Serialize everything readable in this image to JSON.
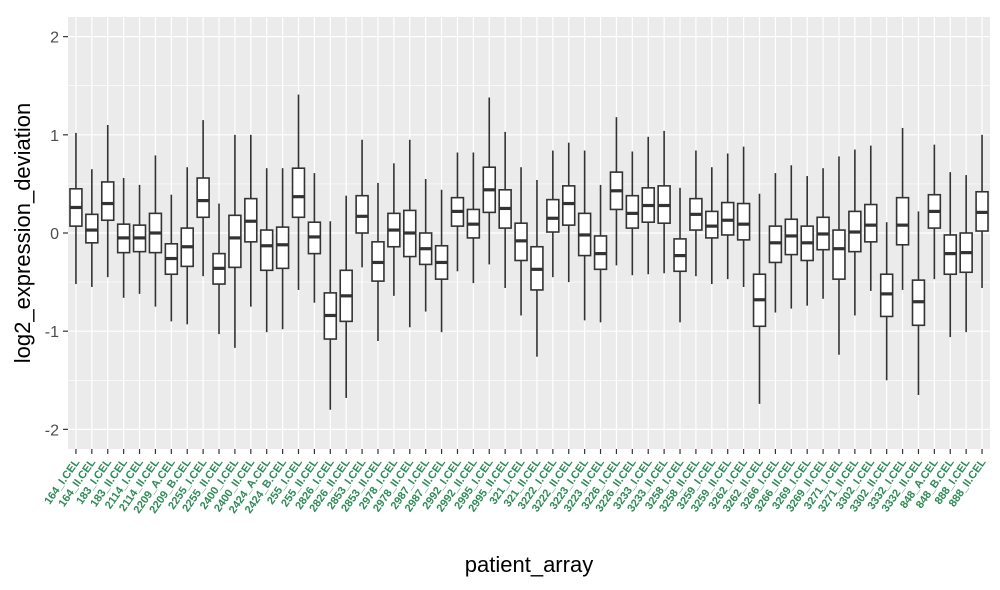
{
  "chart_data": {
    "type": "boxplot",
    "xlabel": "patient_array",
    "ylabel": "log2_expression_deviation",
    "ylim": [
      -2.2,
      2.2
    ],
    "y_ticks": [
      -2,
      -1,
      0,
      1,
      2
    ],
    "y_tick_labels": [
      "-2",
      "-1",
      "0",
      "1",
      "2"
    ],
    "grid": true,
    "legend": "none",
    "colors": {
      "panel": "#EBEBEB",
      "grid": "#FFFFFF",
      "box_fill": "#FFFFFF",
      "box_line": "#333333",
      "tick_label_x": "#2E8B57",
      "tick_label_y": "#4D4D4D"
    },
    "categories": [
      "164_I.CEL",
      "164_II.CEL",
      "183_I.CEL",
      "183_II.CEL",
      "2114_I.CEL",
      "2114_II.CEL",
      "2209_A.CEL",
      "2209_B.CEL",
      "2255_I.CEL",
      "2255_II.CEL",
      "2400_I.CEL",
      "2400_II.CEL",
      "2424_A.CEL",
      "2424_B.CEL",
      "255_I.CEL",
      "255_II.CEL",
      "2826_I.CEL",
      "2826_II.CEL",
      "2853_I.CEL",
      "2853_II.CEL",
      "2978_I.CEL",
      "2978_II.CEL",
      "2987_I.CEL",
      "2987_II.CEL",
      "2992_I.CEL",
      "2992_II.CEL",
      "2995_I.CEL",
      "2995_II.CEL",
      "321_I.CEL",
      "321_II.CEL",
      "3222_I.CEL",
      "3222_II.CEL",
      "3223_I.CEL",
      "3223_II.CEL",
      "3226_I.CEL",
      "3226_II.CEL",
      "3233_I.CEL",
      "3233_II.CEL",
      "3258_I.CEL",
      "3258_II.CEL",
      "3259_I.CEL",
      "3259_II.CEL",
      "3262_I.CEL",
      "3262_II.CEL",
      "3266_I.CEL",
      "3266_II.CEL",
      "3269_I.CEL",
      "3269_II.CEL",
      "3271_I.CEL",
      "3271_II.CEL",
      "3302_I.CEL",
      "3302_II.CEL",
      "3332_I.CEL",
      "3332_II.CEL",
      "848_A.CEL",
      "848_B.CEL",
      "888_I.CEL",
      "888_II.CEL"
    ],
    "boxes": [
      {
        "min": -0.52,
        "q1": 0.07,
        "median": 0.26,
        "q3": 0.45,
        "max": 1.02
      },
      {
        "min": -0.55,
        "q1": -0.1,
        "median": 0.03,
        "q3": 0.19,
        "max": 0.65
      },
      {
        "min": -0.45,
        "q1": 0.13,
        "median": 0.3,
        "q3": 0.52,
        "max": 1.1
      },
      {
        "min": -0.66,
        "q1": -0.2,
        "median": -0.05,
        "q3": 0.09,
        "max": 0.56
      },
      {
        "min": -0.62,
        "q1": -0.19,
        "median": -0.05,
        "q3": 0.08,
        "max": 0.49
      },
      {
        "min": -0.75,
        "q1": -0.2,
        "median": 0.0,
        "q3": 0.2,
        "max": 0.79
      },
      {
        "min": -0.9,
        "q1": -0.42,
        "median": -0.26,
        "q3": -0.11,
        "max": 0.39
      },
      {
        "min": -0.93,
        "q1": -0.34,
        "median": -0.14,
        "q3": 0.05,
        "max": 0.67
      },
      {
        "min": -0.44,
        "q1": 0.16,
        "median": 0.33,
        "q3": 0.56,
        "max": 1.15
      },
      {
        "min": -1.03,
        "q1": -0.52,
        "median": -0.36,
        "q3": -0.21,
        "max": 0.3
      },
      {
        "min": -1.17,
        "q1": -0.35,
        "median": -0.05,
        "q3": 0.18,
        "max": 1.0
      },
      {
        "min": -0.75,
        "q1": -0.09,
        "median": 0.12,
        "q3": 0.35,
        "max": 1.0
      },
      {
        "min": -1.01,
        "q1": -0.38,
        "median": -0.13,
        "q3": 0.03,
        "max": 0.66
      },
      {
        "min": -0.98,
        "q1": -0.36,
        "median": -0.12,
        "q3": 0.06,
        "max": 0.66
      },
      {
        "min": -0.58,
        "q1": 0.16,
        "median": 0.37,
        "q3": 0.66,
        "max": 1.41
      },
      {
        "min": -0.71,
        "q1": -0.21,
        "median": -0.04,
        "q3": 0.11,
        "max": 0.61
      },
      {
        "min": -1.8,
        "q1": -1.08,
        "median": -0.84,
        "q3": -0.61,
        "max": 0.12
      },
      {
        "min": -1.68,
        "q1": -0.9,
        "median": -0.64,
        "q3": -0.38,
        "max": 0.38
      },
      {
        "min": -0.35,
        "q1": 0.0,
        "median": 0.17,
        "q3": 0.38,
        "max": 0.95
      },
      {
        "min": -1.1,
        "q1": -0.49,
        "median": -0.3,
        "q3": -0.09,
        "max": 0.51
      },
      {
        "min": -0.64,
        "q1": -0.14,
        "median": 0.03,
        "q3": 0.2,
        "max": 0.71
      },
      {
        "min": -0.96,
        "q1": -0.24,
        "median": 0.0,
        "q3": 0.23,
        "max": 0.95
      },
      {
        "min": -0.8,
        "q1": -0.32,
        "median": -0.16,
        "q3": 0.0,
        "max": 0.55
      },
      {
        "min": -1.01,
        "q1": -0.47,
        "median": -0.3,
        "q3": -0.13,
        "max": 0.44
      },
      {
        "min": -0.39,
        "q1": 0.07,
        "median": 0.22,
        "q3": 0.36,
        "max": 0.82
      },
      {
        "min": -0.51,
        "q1": -0.05,
        "median": 0.09,
        "q3": 0.24,
        "max": 0.82
      },
      {
        "min": -0.32,
        "q1": 0.21,
        "median": 0.44,
        "q3": 0.67,
        "max": 1.38
      },
      {
        "min": -0.56,
        "q1": 0.05,
        "median": 0.25,
        "q3": 0.44,
        "max": 1.03
      },
      {
        "min": -0.84,
        "q1": -0.28,
        "median": -0.08,
        "q3": 0.1,
        "max": 0.67
      },
      {
        "min": -1.26,
        "q1": -0.58,
        "median": -0.37,
        "q3": -0.14,
        "max": 0.54
      },
      {
        "min": -0.45,
        "q1": 0.01,
        "median": 0.15,
        "q3": 0.34,
        "max": 0.84
      },
      {
        "min": -0.5,
        "q1": 0.08,
        "median": 0.3,
        "q3": 0.48,
        "max": 0.92
      },
      {
        "min": -0.89,
        "q1": -0.23,
        "median": -0.02,
        "q3": 0.2,
        "max": 0.84
      },
      {
        "min": -0.91,
        "q1": -0.37,
        "median": -0.21,
        "q3": -0.03,
        "max": 0.49
      },
      {
        "min": -0.33,
        "q1": 0.24,
        "median": 0.43,
        "q3": 0.62,
        "max": 1.18
      },
      {
        "min": -0.43,
        "q1": 0.05,
        "median": 0.2,
        "q3": 0.38,
        "max": 0.83
      },
      {
        "min": -0.42,
        "q1": 0.11,
        "median": 0.28,
        "q3": 0.46,
        "max": 0.98
      },
      {
        "min": -0.41,
        "q1": 0.1,
        "median": 0.28,
        "q3": 0.48,
        "max": 1.04
      },
      {
        "min": -0.91,
        "q1": -0.39,
        "median": -0.23,
        "q3": -0.06,
        "max": 0.46
      },
      {
        "min": -0.44,
        "q1": 0.03,
        "median": 0.19,
        "q3": 0.35,
        "max": 0.84
      },
      {
        "min": -0.52,
        "q1": -0.05,
        "median": 0.07,
        "q3": 0.22,
        "max": 0.67
      },
      {
        "min": -0.47,
        "q1": -0.02,
        "median": 0.13,
        "q3": 0.31,
        "max": 0.81
      },
      {
        "min": -0.55,
        "q1": -0.07,
        "median": 0.09,
        "q3": 0.3,
        "max": 0.88
      },
      {
        "min": -1.74,
        "q1": -0.95,
        "median": -0.68,
        "q3": -0.42,
        "max": 0.4
      },
      {
        "min": -0.81,
        "q1": -0.3,
        "median": -0.1,
        "q3": 0.07,
        "max": 0.61
      },
      {
        "min": -0.77,
        "q1": -0.22,
        "median": -0.03,
        "q3": 0.14,
        "max": 0.69
      },
      {
        "min": -0.74,
        "q1": -0.28,
        "median": -0.1,
        "q3": 0.07,
        "max": 0.58
      },
      {
        "min": -0.67,
        "q1": -0.17,
        "median": -0.01,
        "q3": 0.16,
        "max": 0.66
      },
      {
        "min": -1.24,
        "q1": -0.47,
        "median": -0.16,
        "q3": 0.03,
        "max": 0.78
      },
      {
        "min": -0.84,
        "q1": -0.19,
        "median": 0.01,
        "q3": 0.22,
        "max": 0.85
      },
      {
        "min": -0.59,
        "q1": -0.09,
        "median": 0.08,
        "q3": 0.29,
        "max": 0.89
      },
      {
        "min": -1.5,
        "q1": -0.85,
        "median": -0.62,
        "q3": -0.42,
        "max": 0.11
      },
      {
        "min": -0.58,
        "q1": -0.12,
        "median": 0.08,
        "q3": 0.36,
        "max": 1.07
      },
      {
        "min": -1.65,
        "q1": -0.94,
        "median": -0.7,
        "q3": -0.48,
        "max": 0.22
      },
      {
        "min": -0.47,
        "q1": 0.05,
        "median": 0.22,
        "q3": 0.39,
        "max": 0.9
      },
      {
        "min": -1.06,
        "q1": -0.42,
        "median": -0.21,
        "q3": -0.02,
        "max": 0.62
      },
      {
        "min": -1.01,
        "q1": -0.4,
        "median": -0.2,
        "q3": 0.0,
        "max": 0.59
      },
      {
        "min": -0.56,
        "q1": 0.02,
        "median": 0.21,
        "q3": 0.42,
        "max": 1.0
      }
    ]
  }
}
